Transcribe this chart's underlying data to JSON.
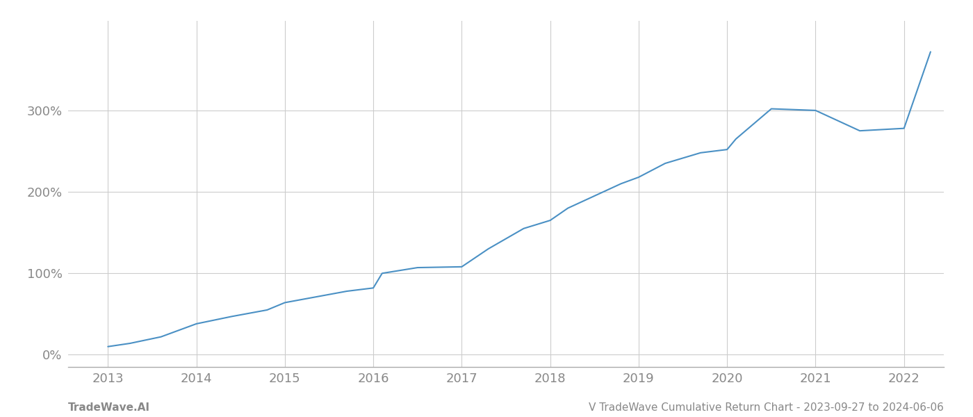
{
  "x_years": [
    2013,
    2014,
    2015,
    2016,
    2017,
    2018,
    2019,
    2020,
    2021,
    2022
  ],
  "x_values": [
    2013.0,
    2013.25,
    2013.6,
    2014.0,
    2014.4,
    2014.8,
    2015.0,
    2015.3,
    2015.7,
    2016.0,
    2016.1,
    2016.5,
    2017.0,
    2017.3,
    2017.7,
    2018.0,
    2018.2,
    2018.5,
    2018.8,
    2019.0,
    2019.3,
    2019.7,
    2020.0,
    2020.1,
    2020.5,
    2021.0,
    2021.5,
    2022.0,
    2022.3
  ],
  "y_values": [
    10,
    14,
    22,
    38,
    47,
    55,
    64,
    70,
    78,
    82,
    100,
    107,
    108,
    130,
    155,
    165,
    180,
    195,
    210,
    218,
    235,
    248,
    252,
    265,
    302,
    300,
    275,
    278,
    372
  ],
  "line_color": "#4a90c4",
  "line_width": 1.5,
  "background_color": "#ffffff",
  "grid_color": "#cccccc",
  "ylabel_color": "#888888",
  "xlabel_color": "#888888",
  "ytick_labels": [
    "0%",
    "100%",
    "200%",
    "300%"
  ],
  "ytick_values": [
    0,
    100,
    200,
    300
  ],
  "ylim": [
    -15,
    410
  ],
  "xlim": [
    2012.55,
    2022.45
  ],
  "watermark_left": "TradeWave.AI",
  "watermark_right": "V TradeWave Cumulative Return Chart - 2023-09-27 to 2024-06-06",
  "watermark_color": "#888888",
  "watermark_fontsize": 11,
  "tick_fontsize": 13,
  "spine_color": "#aaaaaa"
}
